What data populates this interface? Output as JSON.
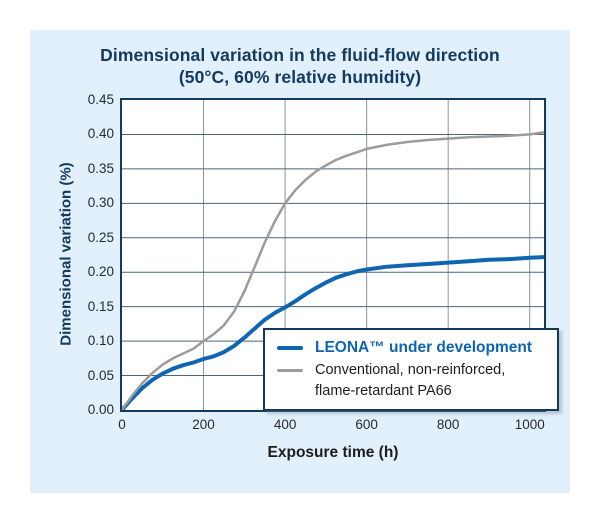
{
  "chart_data": {
    "type": "line",
    "title_line1": "Dimensional variation in the fluid-flow direction",
    "title_line2": "(50°C, 60% relative humidity)",
    "xlabel": "Exposure time (h)",
    "ylabel": "Dimensional variation (%)",
    "xlim": [
      0,
      1035
    ],
    "ylim": [
      0,
      0.45
    ],
    "x_ticks": [
      0,
      200,
      400,
      600,
      800,
      1000
    ],
    "y_ticks": [
      0.0,
      0.05,
      0.1,
      0.15,
      0.2,
      0.25,
      0.3,
      0.35,
      0.4,
      0.45
    ],
    "grid": true,
    "legend_position": "lower right",
    "series": [
      {
        "name": "LEONA™ under development",
        "color": "#1065b3",
        "width": 4,
        "x": [
          0,
          25,
          50,
          75,
          100,
          125,
          150,
          175,
          200,
          225,
          250,
          275,
          300,
          325,
          350,
          375,
          400,
          425,
          450,
          475,
          500,
          525,
          550,
          575,
          600,
          650,
          700,
          750,
          800,
          850,
          900,
          950,
          1000,
          1034
        ],
        "y": [
          0,
          0.017,
          0.032,
          0.044,
          0.053,
          0.06,
          0.065,
          0.069,
          0.074,
          0.078,
          0.084,
          0.093,
          0.105,
          0.118,
          0.131,
          0.141,
          0.149,
          0.158,
          0.168,
          0.177,
          0.185,
          0.192,
          0.197,
          0.201,
          0.204,
          0.208,
          0.21,
          0.212,
          0.214,
          0.216,
          0.218,
          0.219,
          0.221,
          0.222
        ]
      },
      {
        "name": "Conventional, non-reinforced,\nflame-retardant PA66",
        "color": "#9c9c9a",
        "width": 2.5,
        "x": [
          0,
          25,
          50,
          75,
          100,
          125,
          150,
          175,
          200,
          225,
          250,
          275,
          300,
          325,
          350,
          375,
          400,
          425,
          450,
          475,
          500,
          525,
          550,
          575,
          600,
          650,
          700,
          750,
          800,
          850,
          900,
          950,
          1000,
          1034
        ],
        "y": [
          0,
          0.021,
          0.039,
          0.054,
          0.066,
          0.075,
          0.082,
          0.089,
          0.1,
          0.11,
          0.123,
          0.143,
          0.172,
          0.207,
          0.243,
          0.274,
          0.3,
          0.319,
          0.334,
          0.346,
          0.355,
          0.363,
          0.369,
          0.374,
          0.379,
          0.385,
          0.389,
          0.392,
          0.394,
          0.396,
          0.397,
          0.398,
          0.4,
          0.403
        ]
      }
    ]
  },
  "colors": {
    "panel_bg": "#e1f0fb",
    "title": "#143a60",
    "axis_border": "#14395f",
    "grid_v": "#8494a3",
    "grid_h": "#4f6377",
    "blue": "#1065b3",
    "gray": "#9c9c9a",
    "tick": "#242a31",
    "xlabel": "#1d1d1b",
    "legend_text": "#1d1d1b",
    "legend_border": "#14395f"
  }
}
